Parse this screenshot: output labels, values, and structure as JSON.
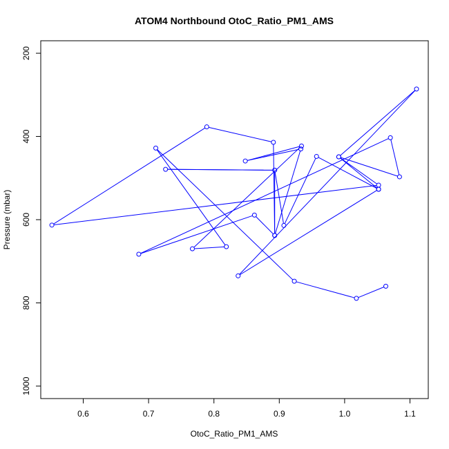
{
  "chart_data": {
    "type": "line",
    "title": "ATOM4 Northbound OtoC_Ratio_PM1_AMS",
    "xlabel": "OtoC_Ratio_PM1_AMS",
    "ylabel": "Pressure (mbar)",
    "xlim": [
      0.535,
      1.128
    ],
    "ylim": [
      1030,
      170
    ],
    "y_reversed": true,
    "x_ticks": [
      0.6,
      0.7,
      0.8,
      0.9,
      1.0,
      1.1
    ],
    "x_tick_labels": [
      "0.6",
      "0.7",
      "0.8",
      "0.9",
      "1.0",
      "1.1"
    ],
    "y_ticks": [
      200,
      400,
      600,
      800,
      1000
    ],
    "y_tick_labels": [
      "200",
      "400",
      "600",
      "800",
      "1000"
    ],
    "grid": false,
    "legend": "none",
    "series": [
      {
        "marker": "open-circle",
        "color": "#0000ff",
        "points": [
          {
            "x": 1.063,
            "y": 760
          },
          {
            "x": 1.018,
            "y": 789
          },
          {
            "x": 0.923,
            "y": 748
          },
          {
            "x": 0.711,
            "y": 428
          },
          {
            "x": 0.819,
            "y": 665
          },
          {
            "x": 0.767,
            "y": 670
          },
          {
            "x": 0.934,
            "y": 423
          },
          {
            "x": 0.848,
            "y": 459
          },
          {
            "x": 0.933,
            "y": 430
          },
          {
            "x": 0.893,
            "y": 638
          },
          {
            "x": 0.891,
            "y": 414
          },
          {
            "x": 0.789,
            "y": 377
          },
          {
            "x": 0.552,
            "y": 613
          },
          {
            "x": 1.052,
            "y": 517
          },
          {
            "x": 0.991,
            "y": 449
          },
          {
            "x": 1.084,
            "y": 497
          },
          {
            "x": 1.07,
            "y": 403
          },
          {
            "x": 0.685,
            "y": 683
          },
          {
            "x": 0.862,
            "y": 589
          },
          {
            "x": 0.893,
            "y": 638
          },
          {
            "x": 0.893,
            "y": 481
          },
          {
            "x": 0.726,
            "y": 479
          },
          {
            "x": 0.893,
            "y": 481
          },
          {
            "x": 0.907,
            "y": 614
          },
          {
            "x": 0.957,
            "y": 448
          },
          {
            "x": 1.052,
            "y": 527
          },
          {
            "x": 0.991,
            "y": 449
          },
          {
            "x": 1.11,
            "y": 286
          },
          {
            "x": 0.837,
            "y": 735
          },
          {
            "x": 1.052,
            "y": 527
          }
        ]
      }
    ]
  }
}
